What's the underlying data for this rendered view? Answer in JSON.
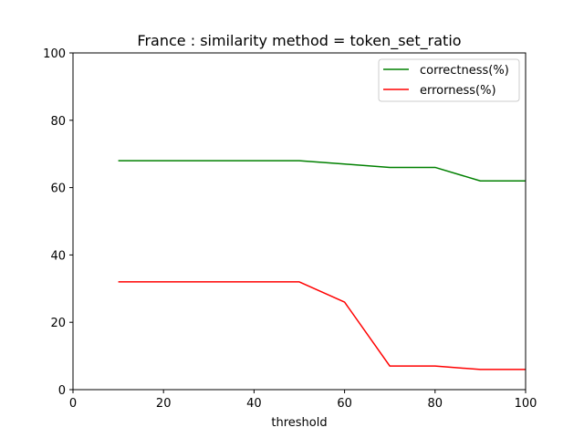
{
  "chart_data": {
    "type": "line",
    "title": "France : similarity method = token_set_ratio",
    "xlabel": "threshold",
    "ylabel": "",
    "xlim": [
      0,
      100
    ],
    "ylim": [
      0,
      100
    ],
    "xticks": [
      0,
      20,
      40,
      60,
      80,
      100
    ],
    "yticks": [
      0,
      20,
      40,
      60,
      80,
      100
    ],
    "grid": false,
    "legend_position": "top-right",
    "x": [
      10,
      20,
      30,
      40,
      50,
      60,
      70,
      80,
      90,
      100
    ],
    "series": [
      {
        "name": "correctness(%)",
        "color": "#008000",
        "values": [
          68,
          68,
          68,
          68,
          68,
          67,
          66,
          66,
          62,
          62
        ]
      },
      {
        "name": "errorness(%)",
        "color": "#ff0000",
        "values": [
          32,
          32,
          32,
          32,
          32,
          26,
          7,
          7,
          6,
          6
        ]
      }
    ]
  }
}
